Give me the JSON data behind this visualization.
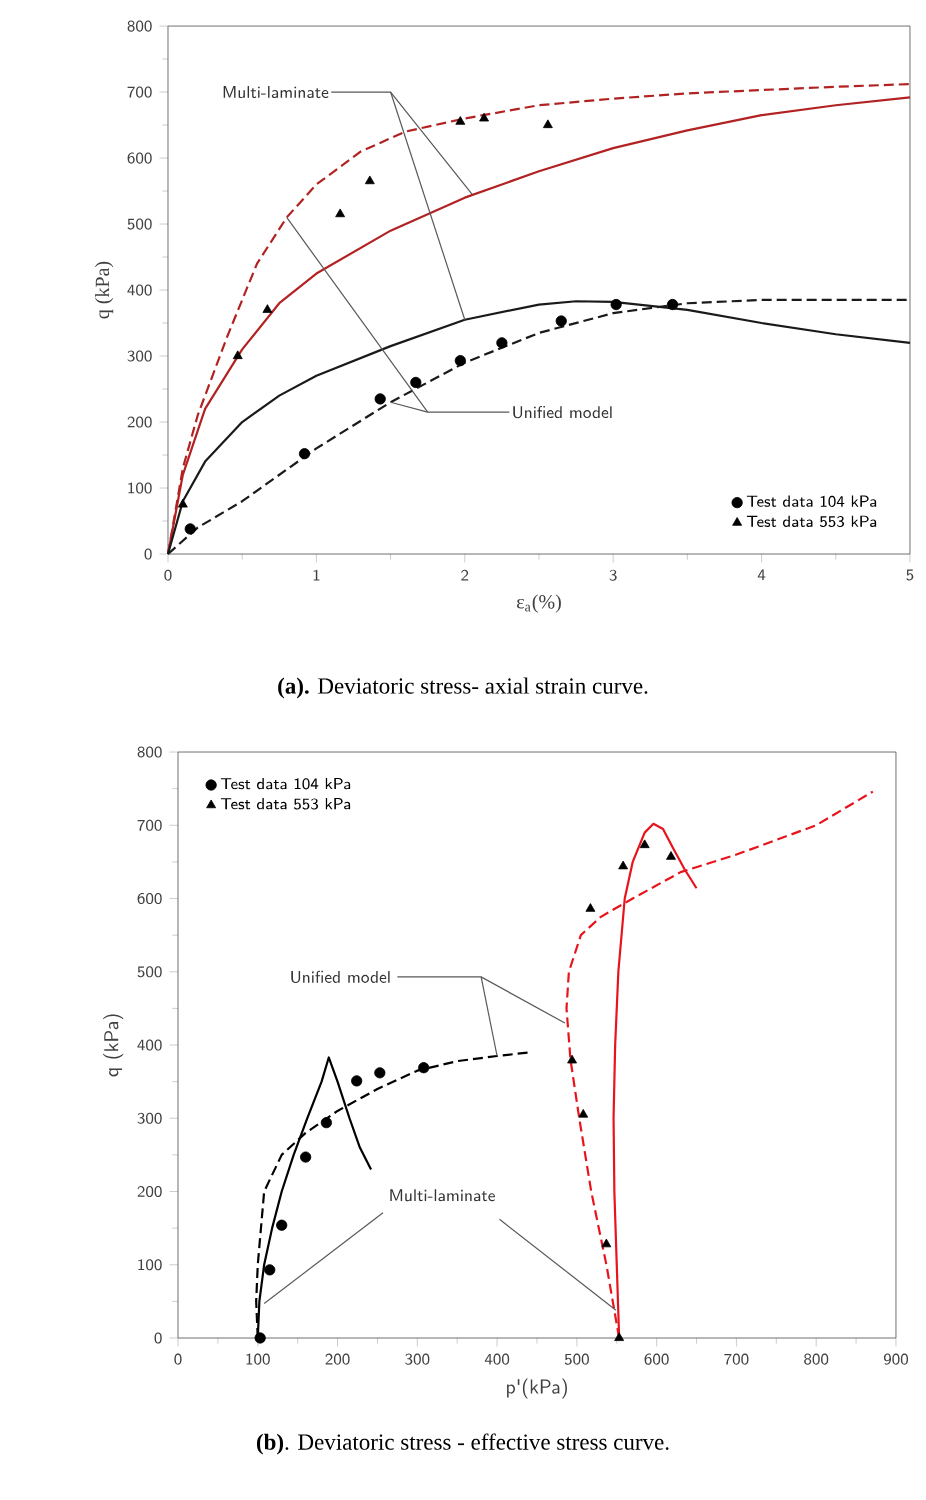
{
  "chart_data": [
    {
      "type": "line",
      "title": "**(a).** Deviatoric stress- axial strain curve.",
      "xlabel": "ε$_{a}$(%)",
      "ylabel": "q (kPa)",
      "xlim": [
        0,
        5
      ],
      "ylim": [
        0,
        800
      ],
      "xticks": [
        0,
        1,
        2,
        3,
        4,
        5
      ],
      "yticks": [
        0,
        100,
        200,
        300,
        400,
        500,
        600,
        700,
        800
      ],
      "legend": "bottom right",
      "annotations": [
        {
          "text": "Multi-laminate",
          "x": 2.05,
          "y": 545
        },
        {
          "text": "Unified model",
          "x": 0.8,
          "y": 510
        }
      ],
      "series": [
        {
          "line_style": "dashed",
          "color": "#b22222",
          "x": [
            0,
            0.1,
            0.2,
            0.4,
            0.6,
            0.8,
            1.0,
            1.3,
            1.6,
            2.0,
            2.5,
            3,
            3.5,
            4,
            4.5,
            5
          ],
          "values": [
            0,
            130,
            210,
            330,
            440,
            510,
            560,
            610,
            640,
            660,
            680,
            690,
            698,
            703,
            708,
            712
          ]
        },
        {
          "line_style": "solid",
          "color": "#b22222",
          "x": [
            0,
            0.1,
            0.25,
            0.5,
            0.75,
            1,
            1.5,
            2,
            2.5,
            3,
            3.5,
            4,
            4.5,
            5
          ],
          "values": [
            0,
            120,
            220,
            310,
            380,
            425,
            490,
            540,
            580,
            615,
            642,
            665,
            680,
            692
          ]
        },
        {
          "line_style": "solid",
          "color": "#1a1a1a",
          "x": [
            0,
            0.1,
            0.25,
            0.5,
            0.75,
            1,
            1.5,
            2,
            2.5,
            2.75,
            3,
            3.5,
            4,
            4.5,
            5
          ],
          "values": [
            0,
            80,
            140,
            200,
            240,
            270,
            315,
            355,
            378,
            383,
            382,
            370,
            350,
            333,
            320
          ]
        },
        {
          "line_style": "dashed",
          "color": "#1a1a1a",
          "x": [
            0,
            0.2,
            0.5,
            1,
            1.5,
            2,
            2.5,
            3,
            3.5,
            4,
            5
          ],
          "values": [
            0,
            40,
            80,
            160,
            230,
            290,
            335,
            365,
            380,
            385,
            385
          ]
        },
        {
          "type": "scatter",
          "marker": "circle",
          "name": "Test data 104 kPa",
          "color": "#000000",
          "x": [
            0.15,
            0.92,
            1.43,
            1.67,
            1.97,
            2.25,
            2.65,
            3.02,
            3.4
          ],
          "values": [
            38,
            152,
            235,
            260,
            293,
            320,
            353,
            378,
            378
          ]
        },
        {
          "type": "scatter",
          "marker": "triangle",
          "name": "Test data 553 kPa",
          "color": "#000000",
          "x": [
            0.1,
            0.47,
            0.67,
            1.16,
            1.36,
            1.97,
            2.13,
            2.56
          ],
          "values": [
            75,
            300,
            370,
            515,
            565,
            655,
            660,
            650
          ]
        }
      ]
    },
    {
      "type": "line",
      "title": "**(b)**. Deviatoric stress - effective stress curve.",
      "xlabel": "p'(kPa)",
      "ylabel": "q (kPa)",
      "xlim": [
        0,
        900
      ],
      "ylim": [
        0,
        800
      ],
      "xticks": [
        0,
        100,
        200,
        300,
        400,
        500,
        600,
        700,
        800,
        900
      ],
      "yticks": [
        0,
        100,
        200,
        300,
        400,
        500,
        600,
        700,
        800
      ],
      "legend": "top left",
      "annotations": [
        {
          "text": "Unified model",
          "x": 485,
          "y": 430
        },
        {
          "text": "Multi-laminate",
          "x": 108,
          "y": 47
        }
      ],
      "series": [
        {
          "line_style": "dashed",
          "color": "#e8141c",
          "x": [
            553,
            537,
            518,
            503,
            492,
            487,
            490,
            505,
            530,
            570,
            630,
            700,
            800,
            871
          ],
          "values": [
            0,
            100,
            200,
            300,
            380,
            450,
            500,
            550,
            575,
            600,
            636,
            660,
            700,
            746
          ]
        },
        {
          "line_style": "solid",
          "color": "#e8141c",
          "x": [
            553,
            550,
            547,
            546,
            548,
            552,
            560,
            570,
            585,
            596,
            608,
            620,
            635,
            650
          ],
          "values": [
            0,
            100,
            200,
            300,
            400,
            500,
            600,
            650,
            690,
            702,
            695,
            670,
            640,
            614
          ]
        },
        {
          "line_style": "solid",
          "color": "#000000",
          "x": [
            100,
            102,
            108,
            118,
            130,
            145,
            162,
            180,
            189,
            200,
            215,
            228,
            242
          ],
          "values": [
            0,
            50,
            100,
            150,
            200,
            250,
            300,
            350,
            383,
            350,
            300,
            260,
            230
          ]
        },
        {
          "line_style": "dashed",
          "color": "#000000",
          "x": [
            100,
            98,
            100,
            108,
            130,
            160,
            200,
            250,
            300,
            350,
            400,
            441
          ],
          "values": [
            0,
            50,
            100,
            200,
            250,
            280,
            310,
            340,
            365,
            378,
            385,
            390
          ]
        },
        {
          "type": "scatter",
          "marker": "circle",
          "name": "Test data 104 kPa",
          "color": "#000000",
          "x": [
            103,
            115,
            130,
            160,
            186,
            224,
            253,
            308
          ],
          "values": [
            0,
            93,
            154,
            247,
            294,
            351,
            362,
            369
          ]
        },
        {
          "type": "scatter",
          "marker": "triangle",
          "name": "Test data 553 kPa",
          "color": "#000000",
          "x": [
            553,
            537,
            508,
            494,
            517,
            558,
            585,
            618
          ],
          "values": [
            0,
            128,
            305,
            379,
            586,
            644,
            673,
            657
          ]
        }
      ]
    }
  ]
}
